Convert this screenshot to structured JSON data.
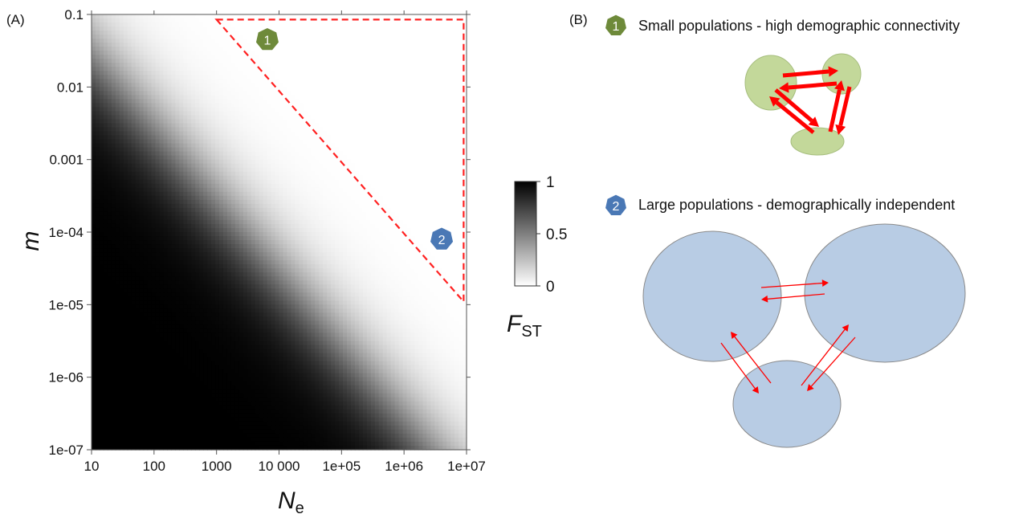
{
  "panel_a": {
    "label": "(A)"
  },
  "panel_b": {
    "label": "(B)",
    "scenario_1": {
      "marker": "1",
      "caption": "Small populations - high demographic connectivity",
      "color": "#6e8a3a",
      "ellipse_color": "#c3d89a"
    },
    "scenario_2": {
      "marker": "2",
      "caption": "Large populations - demographically independent",
      "color": "#4a78b5",
      "ellipse_color": "#b8cce4"
    },
    "arrow_color": "#ff0000"
  },
  "chart_data": {
    "type": "heatmap",
    "xlabel_main": "N",
    "xlabel_sub": "e",
    "ylabel": "m",
    "x_scale": "log",
    "y_scale": "log",
    "xlim": [
      10,
      10000000
    ],
    "ylim": [
      1e-07,
      0.1
    ],
    "x_ticks": [
      {
        "value": 10,
        "label": "10"
      },
      {
        "value": 100,
        "label": "100"
      },
      {
        "value": 1000,
        "label": "1000"
      },
      {
        "value": 10000,
        "label": "10 000"
      },
      {
        "value": 100000,
        "label": "1e+05"
      },
      {
        "value": 1000000,
        "label": "1e+06"
      },
      {
        "value": 10000000,
        "label": "1e+07"
      }
    ],
    "y_ticks": [
      {
        "value": 0.1,
        "label": "0.1"
      },
      {
        "value": 0.01,
        "label": "0.01"
      },
      {
        "value": 0.001,
        "label": "0.001"
      },
      {
        "value": 0.0001,
        "label": "1e-04"
      },
      {
        "value": 1e-05,
        "label": "1e-05"
      },
      {
        "value": 1e-06,
        "label": "1e-06"
      },
      {
        "value": 1e-07,
        "label": "1e-07"
      }
    ],
    "value_formula": "F_ST = 1 / (1 + 4 * N_e * m)",
    "colorscale": {
      "low": "#ffffff",
      "high": "#000000"
    },
    "colorbar": {
      "title_main": "F",
      "title_sub": "ST",
      "ticks": [
        {
          "value": 1,
          "label": "1"
        },
        {
          "value": 0.5,
          "label": "0.5"
        },
        {
          "value": 0,
          "label": "0"
        }
      ]
    },
    "highlight_region": {
      "style": "dashed",
      "color": "#ff2020",
      "vertices": [
        {
          "Ne": 1000,
          "m": 0.085
        },
        {
          "Ne": 9000000,
          "m": 0.085
        },
        {
          "Ne": 9000000,
          "m": 1.1e-05
        }
      ]
    },
    "markers": [
      {
        "label": "1",
        "Ne": 6500,
        "m": 0.045,
        "color": "#6e8a3a"
      },
      {
        "label": "2",
        "Ne": 4000000,
        "m": 8e-05,
        "color": "#4a78b5"
      }
    ]
  }
}
